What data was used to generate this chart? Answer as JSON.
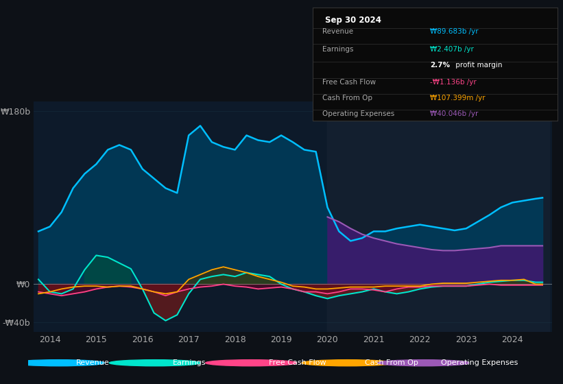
{
  "bg_color": "#0d1117",
  "plot_bg_color": "#0d1a2a",
  "grid_color": "#1e3a4a",
  "years": [
    2013.75,
    2014.0,
    2014.25,
    2014.5,
    2014.75,
    2015.0,
    2015.25,
    2015.5,
    2015.75,
    2016.0,
    2016.25,
    2016.5,
    2016.75,
    2017.0,
    2017.25,
    2017.5,
    2017.75,
    2018.0,
    2018.25,
    2018.5,
    2018.75,
    2019.0,
    2019.25,
    2019.5,
    2019.75,
    2020.0,
    2020.25,
    2020.5,
    2020.75,
    2021.0,
    2021.25,
    2021.5,
    2021.75,
    2022.0,
    2022.25,
    2022.5,
    2022.75,
    2023.0,
    2023.25,
    2023.5,
    2023.75,
    2024.0,
    2024.25,
    2024.5,
    2024.65
  ],
  "revenue": [
    55,
    60,
    75,
    100,
    115,
    125,
    140,
    145,
    140,
    120,
    110,
    100,
    95,
    155,
    165,
    148,
    143,
    140,
    155,
    150,
    148,
    155,
    148,
    140,
    138,
    80,
    55,
    45,
    48,
    55,
    55,
    58,
    60,
    62,
    60,
    58,
    56,
    58,
    65,
    72,
    80,
    85,
    87,
    89,
    90
  ],
  "earnings": [
    5,
    -8,
    -10,
    -5,
    15,
    30,
    28,
    22,
    16,
    -5,
    -30,
    -38,
    -32,
    -10,
    5,
    8,
    10,
    8,
    12,
    10,
    8,
    0,
    -5,
    -8,
    -12,
    -15,
    -12,
    -10,
    -8,
    -5,
    -8,
    -10,
    -8,
    -5,
    -3,
    -2,
    -2,
    -2,
    0,
    2,
    3,
    4,
    4,
    2,
    2
  ],
  "free_cash_flow": [
    -8,
    -10,
    -12,
    -10,
    -8,
    -5,
    -3,
    -2,
    -3,
    -5,
    -8,
    -12,
    -8,
    -5,
    -3,
    -2,
    0,
    -2,
    -3,
    -5,
    -4,
    -3,
    -5,
    -8,
    -8,
    -10,
    -8,
    -5,
    -5,
    -6,
    -8,
    -5,
    -3,
    -3,
    -2,
    -2,
    -2,
    -2,
    -1,
    0,
    -1,
    -1,
    -1,
    -1,
    -1
  ],
  "cash_from_op": [
    -10,
    -8,
    -5,
    -3,
    -2,
    -2,
    -3,
    -2,
    -2,
    -5,
    -8,
    -10,
    -8,
    5,
    10,
    15,
    18,
    15,
    12,
    8,
    5,
    2,
    -2,
    -3,
    -5,
    -5,
    -4,
    -3,
    -3,
    -3,
    -2,
    -2,
    -2,
    -2,
    0,
    1,
    1,
    1,
    2,
    3,
    4,
    4,
    5,
    0,
    0
  ],
  "op_expenses": [
    0,
    0,
    0,
    0,
    0,
    0,
    0,
    0,
    0,
    0,
    0,
    0,
    0,
    0,
    0,
    0,
    0,
    0,
    0,
    0,
    0,
    0,
    0,
    0,
    0,
    70,
    65,
    58,
    52,
    48,
    45,
    42,
    40,
    38,
    36,
    35,
    35,
    36,
    37,
    38,
    40,
    40,
    40,
    40,
    40
  ],
  "revenue_color": "#00bfff",
  "earnings_color": "#00e5cc",
  "fcf_color": "#ff4488",
  "cashop_color": "#ffa500",
  "opex_color": "#9b59b6",
  "forecast_start": 2020.0,
  "ylim_min": -50,
  "ylim_max": 190,
  "yticks": [
    -40,
    0,
    180
  ],
  "ytick_labels": [
    "-₩40b",
    "₩0",
    "₩180b"
  ],
  "xticks": [
    2014,
    2015,
    2016,
    2017,
    2018,
    2019,
    2020,
    2021,
    2022,
    2023,
    2024
  ],
  "legend_items": [
    {
      "label": "Revenue",
      "color": "#00bfff"
    },
    {
      "label": "Earnings",
      "color": "#00e5cc"
    },
    {
      "label": "Free Cash Flow",
      "color": "#ff4488"
    },
    {
      "label": "Cash From Op",
      "color": "#ffa500"
    },
    {
      "label": "Operating Expenses",
      "color": "#9b59b6"
    }
  ],
  "info_title": "Sep 30 2024",
  "info_rows": [
    {
      "label": "Revenue",
      "value": "₩89.683b /yr",
      "value_color": "#00bfff"
    },
    {
      "label": "Earnings",
      "value": "₩2.407b /yr",
      "value_color": "#00e5cc"
    },
    {
      "label": "",
      "value": "profit margin",
      "value_color": "#ffffff",
      "prefix": "2.7%"
    },
    {
      "label": "Free Cash Flow",
      "value": "-₩1.136b /yr",
      "value_color": "#ff4488"
    },
    {
      "label": "Cash From Op",
      "value": "₩107.399m /yr",
      "value_color": "#ffa500"
    },
    {
      "label": "Operating Expenses",
      "value": "₩40.046b /yr",
      "value_color": "#9b59b6"
    }
  ]
}
